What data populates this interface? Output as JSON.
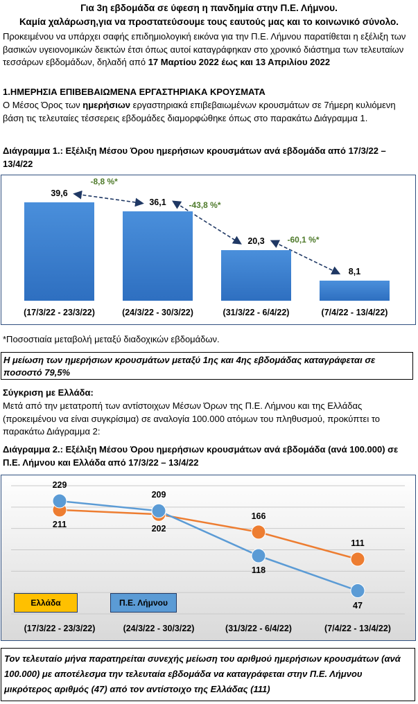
{
  "header": {
    "title": "Για 3η εβδομάδα σε ύφεση η πανδημία στην Π.Ε. Λήμνου.",
    "subtitle": "Καμία χαλάρωση,για να προστατεύσουμε τους εαυτούς μας και το κοινωνικό σύνολο."
  },
  "intro": {
    "text": "Προκειμένου να υπάρχει σαφής επιδημιολογική εικόνα για την Π.Ε. Λήμνου παρατίθεται η εξέλιξη των βασικών υγειονομικών δεικτών έτσι όπως αυτοί καταγράφηκαν στο χρονικό διάστημα των τελευταίων τεσσάρων εβδομάδων, δηλαδή από ",
    "bold_period": "17 Μαρτίου 2022  έως και 13 Απριλίου 2022"
  },
  "section1": {
    "heading": "1.ΗΜΕΡΗΣΙΑ ΕΠΙΒΕΒΑΙΩΜΕΝΑ ΕΡΓΑΣΤΗΡΙΑΚΑ ΚΡΟΥΣΜΑΤΑ",
    "text_before": "Ο Μέσος Όρος των ",
    "text_bold": "ημερήσιων",
    "text_after": " εργαστηριακά επιβεβαιωμένων κρουσμάτων σε 7ήμερη κυλιόμενη βάση τις τελευταίες τέσσερεις εβδομάδες διαμορφώθηκε όπως στο παρακάτω Διάγραμμα 1."
  },
  "diagram1_caption": "Διάγραμμα 1.: Εξέλιξη Μέσου Όρου ημερήσιων κρουσμάτων ανά εβδομάδα από 17/3/22 – 13/4/22",
  "footnote": "*Ποσοστιαία μεταβολή μεταξύ διαδοχικών εβδομάδων.",
  "box1": "Η μείωση των ημερήσιων κρουσμάτων μεταξύ 1ης και 4ης εβδομάδας καταγράφεται σε ποσοστό 79,5%",
  "comparison": {
    "heading": "Σύγκριση με Ελλάδα:",
    "text": "Μετά από την μετατροπή των αντίστοιχων Μέσων Όρων της Π.Ε. Λήμνου και της Ελλάδας (προκειμένου να είναι συγκρίσιμα) σε αναλογία 100.000 ατόμων του πληθυσμού, προκύπτει το παρακάτω Διάγραμμα 2:"
  },
  "diagram2_caption": "Διάγραμμα 2.: Εξέλιξη Μέσου Όρου ημερήσιων κρουσμάτων ανά εβδομάδα (ανά 100.000) σε Π.Ε. Λήμνου και Ελλάδα από 17/3/22 – 13/4/22",
  "box2": "Τον τελευταίο μήνα παρατηρείται συνεχής μείωση του αριθμού ημερήσιων κρουσμάτων (ανά 100.000) με αποτέλεσμα την τελευταία εβδομάδα να καταγράφεται στην Π.Ε. Λήμνου μικρότερος αριθμός (47) από τον αντίστοιχο της Ελλάδας (111)",
  "chart_data": [
    {
      "type": "bar",
      "categories": [
        "(17/3/22 - 23/3/22)",
        "(24/3/22 - 30/3/22)",
        "(31/3/22 - 6/4/22)",
        "(7/4/22 - 13/4/22)"
      ],
      "values": [
        39.6,
        36.1,
        20.3,
        8.1
      ],
      "value_labels": [
        "39,6",
        "36,1",
        "20,3",
        "8,1"
      ],
      "annotations": [
        "-8,8 %*",
        "-43,8 %*",
        "-60,1 %*"
      ],
      "ylim": [
        0,
        45
      ],
      "colors": {
        "bar": "#2e75c9",
        "annotation": "#4e7a2a",
        "arrow": "#1f3864"
      }
    },
    {
      "type": "line",
      "categories": [
        "(17/3/22 - 23/3/22)",
        "(24/3/22 - 30/3/22)",
        "(31/3/22 - 6/4/22)",
        "(7/4/22 - 13/4/22)"
      ],
      "series": [
        {
          "name": "Ελλάδα",
          "values": [
            211,
            202,
            166,
            111
          ],
          "color": "#ed7d31"
        },
        {
          "name": "Π.Ε. Λήμνου",
          "values": [
            229,
            209,
            118,
            47
          ],
          "color": "#5b9bd5"
        }
      ],
      "ylim": [
        0,
        260
      ],
      "grid": true,
      "legend_position": "bottom-left"
    }
  ]
}
